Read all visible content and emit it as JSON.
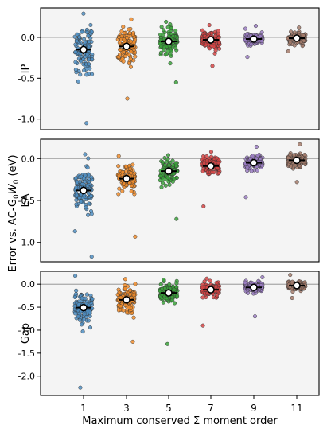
{
  "chart_data": {
    "type": "scatter",
    "layout": "stripplot",
    "shared_ylabel": "Error vs. AC-G$_0W_0$ (eV)",
    "shared_ylabel_prefix": "Error vs. AC-G",
    "shared_ylabel_sub1": "0",
    "shared_ylabel_mid": "W",
    "shared_ylabel_sub2": "0",
    "shared_ylabel_suffix": " (eV)",
    "xlabel": "Maximum conserved Σ moment order",
    "categories": [
      "1",
      "3",
      "5",
      "7",
      "9",
      "11"
    ],
    "colors": [
      "#4f8ec2",
      "#f08c2c",
      "#3ba23b",
      "#d64444",
      "#9a7dc2",
      "#a57b6b"
    ],
    "panels": [
      {
        "ylabel": "IP",
        "ylim": [
          -1.13,
          0.36
        ],
        "yticks": [
          0.0,
          -0.5,
          -1.0
        ],
        "yticklabels": [
          "0.0",
          "-0.5",
          "-1.0"
        ],
        "series": [
          {
            "category": "1",
            "mean": -0.15,
            "spread": 0.27,
            "min": -1.05,
            "max": 0.29
          },
          {
            "category": "3",
            "mean": -0.11,
            "spread": 0.2,
            "min": -0.75,
            "max": 0.22
          },
          {
            "category": "5",
            "mean": -0.05,
            "spread": 0.14,
            "min": -0.55,
            "max": 0.19
          },
          {
            "category": "7",
            "mean": -0.03,
            "spread": 0.09,
            "min": -0.35,
            "max": 0.15
          },
          {
            "category": "9",
            "mean": -0.02,
            "spread": 0.07,
            "min": -0.24,
            "max": 0.14
          },
          {
            "category": "11",
            "mean": -0.01,
            "spread": 0.06,
            "min": -0.17,
            "max": 0.12
          }
        ]
      },
      {
        "ylabel": "EA",
        "ylim": [
          -1.23,
          0.23
        ],
        "yticks": [
          0.0,
          -0.5,
          -1.0
        ],
        "yticklabels": [
          "0.0",
          "-0.5",
          "-1.0"
        ],
        "series": [
          {
            "category": "1",
            "mean": -0.38,
            "spread": 0.22,
            "min": -1.17,
            "max": 0.05
          },
          {
            "category": "3",
            "mean": -0.24,
            "spread": 0.16,
            "min": -0.93,
            "max": 0.03
          },
          {
            "category": "5",
            "mean": -0.15,
            "spread": 0.12,
            "min": -0.72,
            "max": 0.04
          },
          {
            "category": "7",
            "mean": -0.09,
            "spread": 0.09,
            "min": -0.57,
            "max": 0.08
          },
          {
            "category": "9",
            "mean": -0.05,
            "spread": 0.08,
            "min": -0.46,
            "max": 0.14
          },
          {
            "category": "11",
            "mean": -0.02,
            "spread": 0.07,
            "min": -0.28,
            "max": 0.17
          }
        ]
      },
      {
        "ylabel": "Gap",
        "ylim": [
          -2.42,
          0.28
        ],
        "yticks": [
          0.0,
          -0.5,
          -1.0,
          -1.5,
          -2.0
        ],
        "yticklabels": [
          "0.0",
          "-0.5",
          "-1.0",
          "-1.5",
          "-2.0"
        ],
        "series": [
          {
            "category": "1",
            "mean": -0.51,
            "spread": 0.3,
            "min": -2.25,
            "max": 0.18
          },
          {
            "category": "3",
            "mean": -0.34,
            "spread": 0.24,
            "min": -1.25,
            "max": 0.11
          },
          {
            "category": "5",
            "mean": -0.19,
            "spread": 0.17,
            "min": -1.3,
            "max": 0.09
          },
          {
            "category": "7",
            "mean": -0.12,
            "spread": 0.12,
            "min": -0.9,
            "max": 0.12
          },
          {
            "category": "9",
            "mean": -0.07,
            "spread": 0.1,
            "min": -0.7,
            "max": 0.15
          },
          {
            "category": "11",
            "mean": -0.03,
            "spread": 0.08,
            "min": -0.3,
            "max": 0.2
          }
        ]
      }
    ],
    "reference_line": 0.0,
    "grid": false
  }
}
